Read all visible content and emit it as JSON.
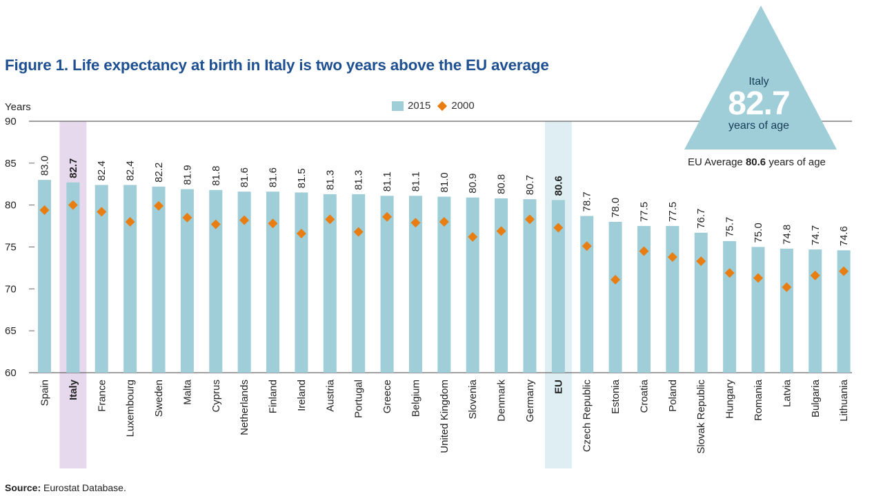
{
  "title": "Figure 1. Life expectancy at birth in Italy is two years above the EU average",
  "source_label": "Source:",
  "source_text": " Eurostat Database.",
  "callout": {
    "name": "Italy",
    "value": "82.7",
    "unit": "years of age",
    "eu_prefix": "EU Average ",
    "eu_value": "80.6",
    "eu_suffix": " years of age"
  },
  "colors": {
    "bar": "#9fcdd8",
    "marker": "#e87d11",
    "italy_band": "#e6d9ee",
    "eu_band": "#deeef3",
    "title": "#1d4f91",
    "triangle": "#9fcdd8"
  },
  "chart_data": {
    "type": "bar",
    "ylabel": "Years",
    "ylim": [
      60,
      90
    ],
    "yticks": [
      60,
      65,
      70,
      75,
      80,
      85,
      90
    ],
    "legend_position": "top-center",
    "highlighted": [
      "Italy",
      "EU"
    ],
    "categories": [
      "Spain",
      "Italy",
      "France",
      "Luxembourg",
      "Sweden",
      "Malta",
      "Cyprus",
      "Netherlands",
      "Finland",
      "Ireland",
      "Austria",
      "Portugal",
      "Greece",
      "Belgium",
      "United Kingdom",
      "Slovenia",
      "Denmark",
      "Germany",
      "EU",
      "Czech Republic",
      "Estonia",
      "Croatia",
      "Poland",
      "Slovak Republic",
      "Hungary",
      "Romania",
      "Latvia",
      "Bulgaria",
      "Lithuania"
    ],
    "series": [
      {
        "name": "2015",
        "kind": "bar",
        "values": [
          83.0,
          82.7,
          82.4,
          82.4,
          82.2,
          81.9,
          81.8,
          81.6,
          81.6,
          81.5,
          81.3,
          81.3,
          81.1,
          81.1,
          81.0,
          80.9,
          80.8,
          80.7,
          80.6,
          78.7,
          78.0,
          77.5,
          77.5,
          76.7,
          75.7,
          75.0,
          74.8,
          74.7,
          74.6
        ],
        "labels": [
          "83.0",
          "82.7",
          "82.4",
          "82.4",
          "82.2",
          "81.9",
          "81.8",
          "81.6",
          "81.6",
          "81.5",
          "81.3",
          "81.3",
          "81.1",
          "81.1",
          "81.0",
          "80.9",
          "80.8",
          "80.7",
          "80.6",
          "78.7",
          "78.0",
          "77.5",
          "77.5",
          "76.7",
          "75.7",
          "75.0",
          "74.8",
          "74.7",
          "74.6"
        ]
      },
      {
        "name": "2000",
        "kind": "marker",
        "values": [
          79.4,
          80.0,
          79.2,
          78.0,
          79.9,
          78.5,
          77.7,
          78.2,
          77.8,
          76.6,
          78.3,
          76.8,
          78.6,
          77.9,
          78.0,
          76.2,
          76.9,
          78.3,
          77.3,
          75.1,
          71.1,
          74.5,
          73.8,
          73.3,
          71.9,
          71.3,
          70.2,
          71.6,
          72.1
        ]
      }
    ]
  }
}
